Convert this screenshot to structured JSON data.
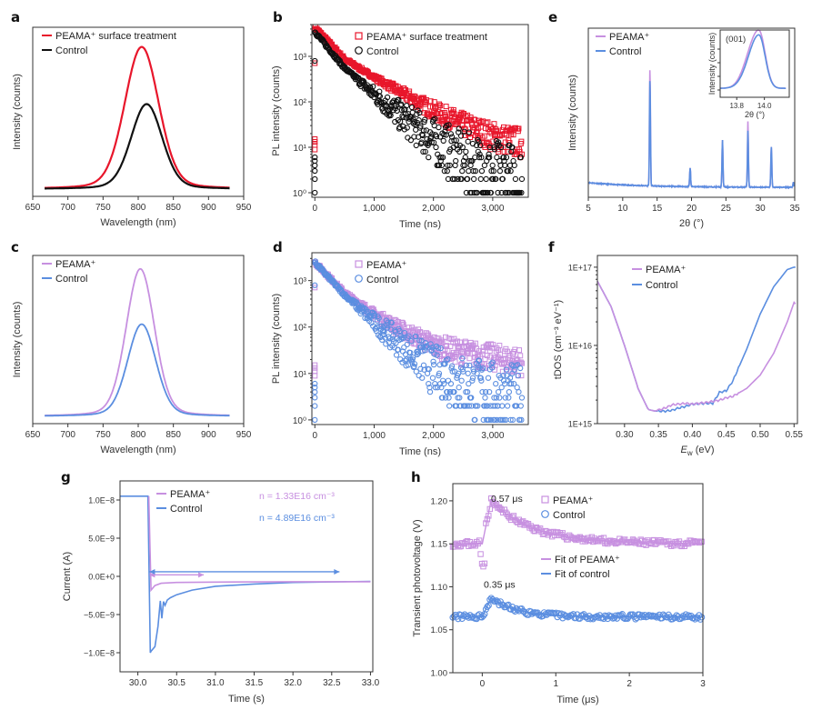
{
  "colors": {
    "red": "#e8162b",
    "black": "#111111",
    "purple": "#c790e0",
    "blue": "#5b8ee0",
    "axis": "#444444"
  },
  "chart_data": [
    {
      "panel": "a",
      "type": "line",
      "title": "",
      "xlabel": "Wavelength (nm)",
      "ylabel": "Intensity (counts)",
      "xlim": [
        650,
        950
      ],
      "ylim": [
        0,
        1.0
      ],
      "yticks_hidden": true,
      "xticks": [
        650,
        700,
        750,
        800,
        850,
        900,
        950
      ],
      "legend": "top-left",
      "series": [
        {
          "name": "PEAMA⁺ surface treatment",
          "color": "red",
          "kind": "gauss",
          "peak": 805,
          "amp": 0.92,
          "sigma": 24,
          "x_range": [
            667,
            930
          ]
        },
        {
          "name": "Control",
          "color": "black",
          "kind": "gauss",
          "peak": 812,
          "amp": 0.55,
          "sigma": 22,
          "x_range": [
            667,
            930
          ]
        }
      ]
    },
    {
      "panel": "b",
      "type": "scatter",
      "xlabel": "Time (ns)",
      "ylabel": "PL intensity (counts)",
      "xlim": [
        -50,
        3600
      ],
      "ylog": true,
      "ylim_log10": [
        -0.1,
        3.7
      ],
      "xticks": [
        0,
        1000,
        2000,
        3000
      ],
      "xtick_labels": [
        "0",
        "1,000",
        "2,000",
        "3,000"
      ],
      "yticks": [
        "10⁰",
        "10¹",
        "10²",
        "10³"
      ],
      "legend": "top-right",
      "series": [
        {
          "name": "PEAMA⁺ surface treatment",
          "color": "red",
          "marker": "square",
          "start_log": 3.65,
          "t_points_ns": [
            0,
            500,
            1000,
            1500,
            2000,
            2500,
            3000,
            3500
          ],
          "log10_values": [
            3.65,
            2.95,
            2.55,
            2.2,
            1.85,
            1.55,
            1.3,
            1.15
          ]
        },
        {
          "name": "Control",
          "color": "black",
          "marker": "circle",
          "start_log": 3.55,
          "t_points_ns": [
            0,
            500,
            1000,
            1500,
            2000,
            2500,
            3000,
            3500
          ],
          "log10_values": [
            3.55,
            2.75,
            2.2,
            1.7,
            1.25,
            0.85,
            0.6,
            0.45
          ]
        }
      ]
    },
    {
      "panel": "e",
      "type": "line",
      "xlabel": "2θ (°)",
      "ylabel": "Intensity (counts)",
      "xlim": [
        5,
        35
      ],
      "xticks": [
        5,
        10,
        15,
        20,
        25,
        30,
        35
      ],
      "legend": "top-left",
      "peaks_2theta": [
        13.96,
        19.8,
        24.5,
        28.2,
        31.6,
        34.8
      ],
      "series": [
        {
          "name": "PEAMA⁺",
          "color": "purple",
          "peak_heights": [
            0.75,
            0.12,
            0.3,
            0.42,
            0.26,
            0.03
          ]
        },
        {
          "name": "Control",
          "color": "blue",
          "peak_heights": [
            0.68,
            0.12,
            0.3,
            0.36,
            0.26,
            0.03
          ]
        }
      ],
      "inset": {
        "label": "(001)",
        "xlabel": "2θ (°)",
        "ylabel": "Intensity (counts)",
        "xlim": [
          13.68,
          14.18
        ],
        "xticks": [
          13.8,
          14.0
        ]
      }
    },
    {
      "panel": "c",
      "type": "line",
      "xlabel": "Wavelength (nm)",
      "ylabel": "Intensity (counts)",
      "xlim": [
        650,
        950
      ],
      "ylim": [
        0,
        1.0
      ],
      "xticks": [
        650,
        700,
        750,
        800,
        850,
        900,
        950
      ],
      "legend": "top-left",
      "series": [
        {
          "name": "PEAMA⁺",
          "color": "purple",
          "kind": "gauss",
          "peak": 803,
          "amp": 0.96,
          "sigma": 20,
          "x_range": [
            667,
            930
          ]
        },
        {
          "name": "Control",
          "color": "blue",
          "kind": "gauss",
          "peak": 805,
          "amp": 0.6,
          "sigma": 20,
          "x_range": [
            667,
            930
          ]
        }
      ]
    },
    {
      "panel": "d",
      "type": "scatter",
      "xlabel": "Time (ns)",
      "ylabel": "PL intensity (counts)",
      "xlim": [
        -50,
        3600
      ],
      "ylog": true,
      "ylim_log10": [
        -0.1,
        3.6
      ],
      "xticks": [
        0,
        1000,
        2000,
        3000
      ],
      "xtick_labels": [
        "0",
        "1,000",
        "2,000",
        "3,000"
      ],
      "yticks": [
        "10⁰",
        "10¹",
        "10²",
        "10³"
      ],
      "legend": "top-right",
      "series": [
        {
          "name": "PEAMA⁺",
          "color": "purple",
          "marker": "square",
          "t_points_ns": [
            0,
            500,
            1000,
            1500,
            2000,
            2500,
            3000,
            3500
          ],
          "log10_values": [
            3.4,
            2.75,
            2.3,
            1.95,
            1.65,
            1.5,
            1.4,
            1.3
          ]
        },
        {
          "name": "Control",
          "color": "blue",
          "marker": "circle",
          "t_points_ns": [
            0,
            500,
            1000,
            1500,
            2000,
            2500,
            3000,
            3500
          ],
          "log10_values": [
            3.4,
            2.7,
            2.15,
            1.65,
            1.2,
            0.9,
            0.7,
            0.6
          ]
        }
      ]
    },
    {
      "panel": "f",
      "type": "line",
      "xlabel": "E_w (eV)",
      "ylabel": "tDOS (cm⁻³ eV⁻¹)",
      "xlim": [
        0.26,
        0.555
      ],
      "ylog": true,
      "ylim_log10": [
        15,
        17.15
      ],
      "xticks": [
        0.3,
        0.35,
        0.4,
        0.45,
        0.5,
        0.55
      ],
      "yticks": [
        "1E+15",
        "1E+16",
        "1E+17"
      ],
      "legend": "top-left",
      "series": [
        {
          "name": "PEAMA⁺",
          "color": "purple",
          "x": [
            0.26,
            0.28,
            0.3,
            0.32,
            0.335,
            0.345,
            0.36,
            0.37,
            0.38,
            0.39,
            0.4,
            0.42,
            0.44,
            0.45,
            0.46,
            0.48,
            0.5,
            0.52,
            0.54,
            0.55,
            0.555
          ],
          "log10_y": [
            16.82,
            16.5,
            16.0,
            15.45,
            15.18,
            15.16,
            15.2,
            15.24,
            15.25,
            15.26,
            15.25,
            15.27,
            15.3,
            15.33,
            15.35,
            15.45,
            15.62,
            15.9,
            16.3,
            16.55,
            16.5
          ]
        },
        {
          "name": "Control",
          "color": "blue",
          "x": [
            0.26,
            0.28,
            0.3,
            0.32,
            0.335,
            0.345,
            0.36,
            0.37,
            0.38,
            0.39,
            0.4,
            0.42,
            0.43,
            0.44,
            0.45,
            0.46,
            0.48,
            0.5,
            0.52,
            0.54,
            0.55,
            0.555
          ],
          "log10_y": [
            16.82,
            16.5,
            16.0,
            15.45,
            15.18,
            15.16,
            15.16,
            15.17,
            15.2,
            15.22,
            15.25,
            15.26,
            15.26,
            15.4,
            15.42,
            15.55,
            15.95,
            16.4,
            16.75,
            16.97,
            17.0,
            17.0
          ]
        }
      ]
    },
    {
      "panel": "g",
      "type": "line",
      "xlabel": "Time (s)",
      "ylabel": "Current (A)",
      "xlim": [
        29.77,
        33.03
      ],
      "ylim": [
        -1.25e-08,
        1.25e-08
      ],
      "xticks": [
        30.0,
        30.5,
        31.0,
        31.5,
        32.0,
        32.5,
        33.0
      ],
      "xtick_labels": [
        "30.0",
        "30.5",
        "31.0",
        "31.5",
        "32.0",
        "32.5",
        "33.0"
      ],
      "yticks": [
        1e-08,
        5e-09,
        0,
        -5e-09,
        -1e-08
      ],
      "ytick_labels": [
        "1.0E−8",
        "5.0E−9",
        "0.0E+0",
        "−5.0E−9",
        "−1.0E−8"
      ],
      "legend": "top-left",
      "annotations": [
        {
          "text": "n = 1.33E16 cm⁻³",
          "color": "purple"
        },
        {
          "text": "n = 4.89E16 cm⁻³",
          "color": "blue"
        }
      ],
      "arrows": [
        {
          "color": "purple",
          "from_s": 30.15,
          "to_s": 30.85,
          "y": 2e-10
        },
        {
          "color": "blue",
          "from_s": 30.15,
          "to_s": 32.6,
          "y": 6e-10
        }
      ],
      "series": [
        {
          "name": "PEAMA⁺",
          "color": "purple",
          "x": [
            30.14,
            30.17,
            30.22,
            30.3,
            30.5,
            31.0,
            32.0,
            33.0
          ],
          "y": [
            1.05e-08,
            -1.8e-09,
            -1.2e-09,
            -9e-10,
            -8e-10,
            -7.5e-10,
            -7e-10,
            -7e-10
          ]
        },
        {
          "name": "Control",
          "color": "blue",
          "x": [
            29.77,
            30.13,
            30.16,
            30.17,
            30.22,
            30.26,
            30.29,
            30.31,
            30.33,
            30.35,
            30.38,
            30.42,
            30.5,
            30.7,
            31.0,
            31.5,
            32.0,
            33.0
          ],
          "y": [
            1.05e-08,
            1.05e-08,
            -1e-08,
            -9.8e-09,
            -9.2e-09,
            -6.5e-09,
            -3.2e-09,
            -5.5e-09,
            -3.3e-09,
            -3.8e-09,
            -3.1e-09,
            -2.8e-09,
            -2.4e-09,
            -1.8e-09,
            -1.3e-09,
            -1e-09,
            -8e-10,
            -6.5e-10
          ]
        }
      ]
    },
    {
      "panel": "h",
      "type": "scatter",
      "xlabel": "Time (μs)",
      "ylabel": "Transient photovoltage (V)",
      "xlim": [
        -0.4,
        3.0
      ],
      "ylim": [
        1.0,
        1.22
      ],
      "xticks": [
        0,
        1,
        2,
        3
      ],
      "yticks": [
        1.0,
        1.05,
        1.1,
        1.15,
        1.2
      ],
      "ytick_labels": [
        "1.00",
        "1.05",
        "1.10",
        "1.15",
        "1.20"
      ],
      "legend": "top-right",
      "annotations": [
        {
          "text": "0.57 μs",
          "color": "black"
        },
        {
          "text": "0.35 μs",
          "color": "black"
        }
      ],
      "series": [
        {
          "name": "PEAMA⁺",
          "color": "purple",
          "marker": "square",
          "baseline": 1.15,
          "peak": 1.2,
          "tau_us": 0.57
        },
        {
          "name": "Control",
          "color": "blue",
          "marker": "circle",
          "baseline": 1.065,
          "peak": 1.087,
          "tau_us": 0.35
        },
        {
          "name": "Fit of PEAMA⁺",
          "color": "purple",
          "marker": "line"
        },
        {
          "name": "Fit of control",
          "color": "blue",
          "marker": "line"
        }
      ]
    }
  ]
}
